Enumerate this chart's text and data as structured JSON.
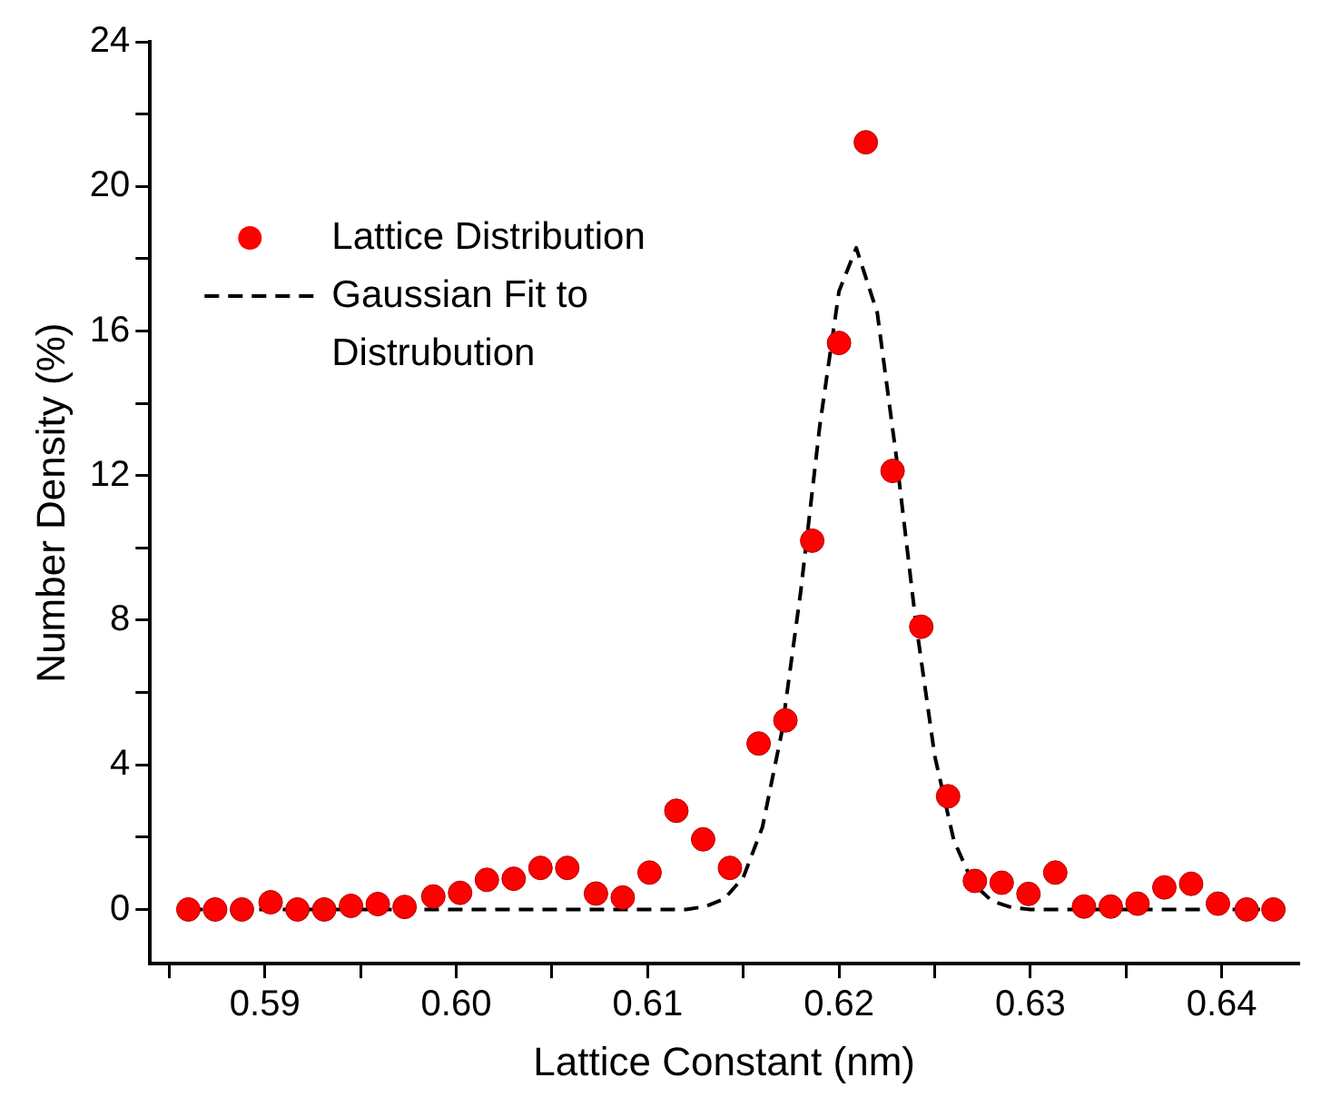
{
  "chart_data": {
    "type": "scatter",
    "xlabel": "Lattice Constant (nm)",
    "ylabel": "Number Density (%)",
    "xlim": [
      0.584,
      0.644
    ],
    "xticks": [
      {
        "value": 0.585,
        "label": null
      },
      {
        "value": 0.59,
        "label": "0.59"
      },
      {
        "value": 0.595,
        "label": null
      },
      {
        "value": 0.6,
        "label": "0.60"
      },
      {
        "value": 0.605,
        "label": null
      },
      {
        "value": 0.61,
        "label": "0.61"
      },
      {
        "value": 0.615,
        "label": null
      },
      {
        "value": 0.62,
        "label": "0.62"
      },
      {
        "value": 0.625,
        "label": null
      },
      {
        "value": 0.63,
        "label": "0.63"
      },
      {
        "value": 0.635,
        "label": null
      },
      {
        "value": 0.64,
        "label": "0.64"
      }
    ],
    "ylim": [
      -1.5,
      24
    ],
    "yticks": [
      0,
      {
        "value": 2,
        "label": null
      },
      4,
      {
        "value": 6,
        "label": null
      },
      8,
      {
        "value": 10,
        "label": null
      },
      12,
      {
        "value": 14,
        "label": null
      },
      16,
      {
        "value": 18,
        "label": null
      },
      20,
      {
        "value": 22,
        "label": null
      },
      24
    ],
    "grid": false,
    "legend": "top left",
    "series": [
      {
        "name": "Lattice Distribution",
        "type": "scatter",
        "color": "#ff0000",
        "marker": "circle",
        "x": [
          0.586,
          0.5874,
          0.5888,
          0.5903,
          0.5917,
          0.5931,
          0.5945,
          0.5959,
          0.5973,
          0.5988,
          0.6002,
          0.6016,
          0.603,
          0.6044,
          0.6058,
          0.6073,
          0.6087,
          0.6101,
          0.6115,
          0.6129,
          0.6143,
          0.6158,
          0.6172,
          0.6186,
          0.62,
          0.6214,
          0.6228,
          0.6243,
          0.6257,
          0.6271,
          0.6285,
          0.6299,
          0.6313,
          0.6328,
          0.6342,
          0.6356,
          0.637,
          0.6384,
          0.6398,
          0.6413,
          0.6427
        ],
        "values": [
          0,
          0,
          0,
          0.2,
          0,
          0,
          0.1,
          0.15,
          0.07,
          0.36,
          0.46,
          0.82,
          0.85,
          1.15,
          1.15,
          0.44,
          0.33,
          1.02,
          2.73,
          1.94,
          1.15,
          4.59,
          5.23,
          10.2,
          15.67,
          21.22,
          12.13,
          7.82,
          3.13,
          0.79,
          0.74,
          0.43,
          1.02,
          0.08,
          0.08,
          0.16,
          0.61,
          0.71,
          0.16,
          0,
          0
        ]
      },
      {
        "name": "Gaussian Fit to Distrubution",
        "type": "line",
        "color": "#000000",
        "marker": "none",
        "line_style": "dashed",
        "x": [
          0.586,
          0.605,
          0.612,
          0.613,
          0.614,
          0.615,
          0.616,
          0.617,
          0.618,
          0.619,
          0.62,
          0.6209,
          0.622,
          0.623,
          0.624,
          0.625,
          0.626,
          0.627,
          0.628,
          0.629,
          0.63,
          0.642
        ],
        "values": [
          0,
          0,
          0,
          0.08,
          0.29,
          0.89,
          2.28,
          4.88,
          8.8,
          13.4,
          17.1,
          18.3,
          16.5,
          12.5,
          8,
          4.25,
          1.91,
          0.72,
          0.23,
          0.06,
          0,
          0
        ]
      }
    ]
  }
}
